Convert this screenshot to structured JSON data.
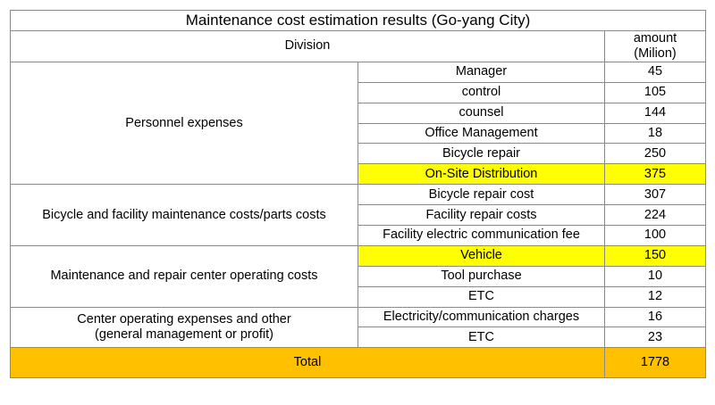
{
  "title": "Maintenance cost estimation results (Go-yang City)",
  "header": {
    "division": "Division",
    "amount_line1": "amount",
    "amount_line2": "(Milion)"
  },
  "groups": [
    {
      "name": "Personnel expenses",
      "items": [
        {
          "label": "Manager",
          "amount": "45"
        },
        {
          "label": "control",
          "amount": "105"
        },
        {
          "label": "counsel",
          "amount": "144"
        },
        {
          "label": "Office Management",
          "amount": "18"
        },
        {
          "label": "Bicycle repair",
          "amount": "250"
        },
        {
          "label": "On-Site Distribution",
          "amount": "375",
          "highlight": true
        }
      ]
    },
    {
      "name": "Bicycle and facility maintenance costs/parts costs",
      "items": [
        {
          "label": "Bicycle repair cost",
          "amount": "307"
        },
        {
          "label": "Facility repair costs",
          "amount": "224"
        },
        {
          "label": "Facility electric communication fee",
          "amount": "100"
        }
      ]
    },
    {
      "name": "Maintenance and repair center operating costs",
      "items": [
        {
          "label": "Vehicle",
          "amount": "150",
          "highlight": true
        },
        {
          "label": "Tool purchase",
          "amount": "10"
        },
        {
          "label": "ETC",
          "amount": "12"
        }
      ]
    },
    {
      "name_line1": "Center operating expenses and other",
      "name_line2": "(general management or profit)",
      "items": [
        {
          "label": "Electricity/communication charges",
          "amount": "16"
        },
        {
          "label": "ETC",
          "amount": "23"
        }
      ]
    }
  ],
  "total": {
    "label": "Total",
    "amount": "1778"
  },
  "colors": {
    "highlight": "#ffff00",
    "total_fill": "#ffc000",
    "border": "#8a8a8a"
  }
}
